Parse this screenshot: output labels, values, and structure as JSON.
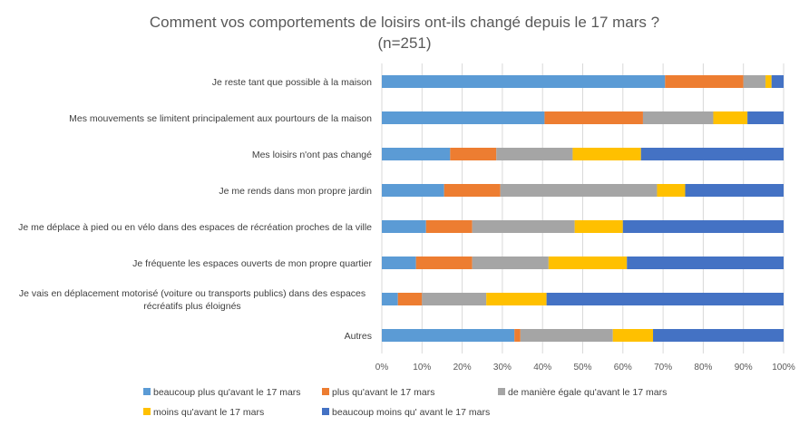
{
  "chart_data": {
    "type": "bar",
    "orientation": "horizontal",
    "stacked": "percent",
    "title": "Comment vos comportements de loisirs ont-ils changé depuis le 17 mars ?",
    "subtitle": "(n=251)",
    "categories": [
      "Je reste tant que possible à la maison",
      "Mes mouvements se limitent principalement aux pourtours de la maison",
      "Mes loisirs n'ont pas changé",
      "Je me rends dans mon propre jardin",
      "Je me déplace à pied ou en vélo dans des espaces de récréation proches de la ville",
      "Je fréquente les espaces ouverts de mon propre quartier",
      "Je vais en déplacement motorisé (voiture ou transports publics) dans des espaces récréatifs plus éloignés",
      "Autres"
    ],
    "category_lines": [
      [
        "Je reste tant que possible à la maison"
      ],
      [
        "Mes mouvements se limitent principalement aux pourtours de la maison"
      ],
      [
        "Mes loisirs n'ont pas changé"
      ],
      [
        "Je me rends dans mon propre jardin"
      ],
      [
        "Je me déplace à pied ou en vélo dans des espaces de récréation proches de la ville"
      ],
      [
        "Je fréquente les espaces ouverts de mon propre quartier"
      ],
      [
        "Je vais en déplacement motorisé (voiture ou transports publics) dans des espaces",
        "récréatifs plus éloignés"
      ],
      [
        "Autres"
      ]
    ],
    "series": [
      {
        "name": "beaucoup plus qu'avant le 17 mars",
        "color": "#5b9bd5",
        "values": [
          70.5,
          40.5,
          17.0,
          15.5,
          11.0,
          8.5,
          4.0,
          33.0
        ]
      },
      {
        "name": "plus qu'avant le 17 mars",
        "color": "#ed7d31",
        "values": [
          19.5,
          24.5,
          11.5,
          14.0,
          11.5,
          14.0,
          6.0,
          1.5
        ]
      },
      {
        "name": "de manière égale qu'avant le 17 mars",
        "color": "#a5a5a5",
        "values": [
          5.5,
          17.5,
          19.0,
          39.0,
          25.5,
          19.0,
          16.0,
          23.0
        ]
      },
      {
        "name": "moins qu'avant le 17 mars",
        "color": "#ffc000",
        "values": [
          1.5,
          8.5,
          17.0,
          7.0,
          12.0,
          19.5,
          15.0,
          10.0
        ]
      },
      {
        "name": "beaucoup moins qu' avant le 17 mars",
        "color": "#4472c4",
        "values": [
          3.0,
          9.0,
          35.5,
          24.5,
          40.0,
          39.0,
          59.0,
          32.5
        ]
      }
    ],
    "xticks": [
      "0%",
      "10%",
      "20%",
      "30%",
      "40%",
      "50%",
      "60%",
      "70%",
      "80%",
      "90%",
      "100%"
    ],
    "xlim": [
      0,
      100
    ],
    "xlabel": "",
    "ylabel": "",
    "grid": true,
    "legend_position": "bottom"
  }
}
